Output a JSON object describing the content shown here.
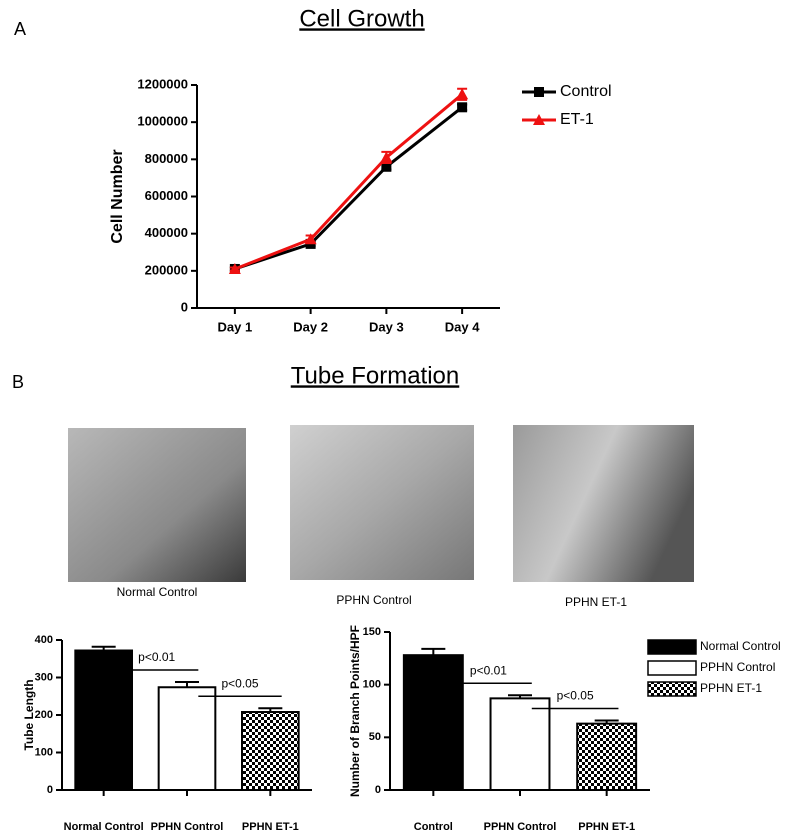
{
  "figure": {
    "panel_labels": [
      "A",
      "B"
    ],
    "section_title": "Tube Formation",
    "images": [
      {
        "caption": "Normal Control"
      },
      {
        "caption": "PPHN Control"
      },
      {
        "caption": "PPHN ET-1"
      }
    ]
  },
  "chart_data": [
    {
      "type": "line",
      "title": "Cell Growth",
      "y_label": "Cell Number",
      "categories": [
        "Day 1",
        "Day 2",
        "Day 3",
        "Day 4"
      ],
      "series": [
        {
          "name": "Control",
          "color": "#000000",
          "marker": "square",
          "values": [
            210000,
            345000,
            760000,
            1080000
          ],
          "errors": [
            8000,
            12000,
            15000,
            15000
          ]
        },
        {
          "name": "ET-1",
          "color": "#ee1111",
          "marker": "triangle",
          "values": [
            210000,
            370000,
            810000,
            1150000
          ],
          "errors": [
            8000,
            20000,
            30000,
            30000
          ]
        }
      ],
      "ylim": [
        0,
        1200000
      ],
      "yticks": [
        0,
        200000,
        400000,
        600000,
        800000,
        1000000,
        1200000
      ],
      "grid": false,
      "legend": "right"
    },
    {
      "type": "bar",
      "y_label": "Tube Length",
      "categories": [
        "Normal Control",
        "PPHN Control",
        "PPHN ET-1"
      ],
      "values": [
        372,
        274,
        208
      ],
      "errors": [
        10,
        14,
        10
      ],
      "fills": [
        "black",
        "white",
        "checker"
      ],
      "ylim": [
        0,
        400
      ],
      "yticks": [
        0,
        100,
        200,
        300,
        400
      ],
      "grid": false,
      "annotations": [
        "p<0.01",
        "p<0.05"
      ]
    },
    {
      "type": "bar",
      "y_label": "Number of Branch Points/HPF",
      "categories": [
        "Control",
        "PPHN Control",
        "PPHN ET-1"
      ],
      "values": [
        128,
        87,
        63
      ],
      "errors": [
        6,
        3,
        3
      ],
      "fills": [
        "black",
        "white",
        "checker"
      ],
      "ylim": [
        0,
        150
      ],
      "yticks": [
        0,
        50,
        100,
        150
      ],
      "grid": false,
      "annotations": [
        "p<0.01",
        "p<0.05"
      ],
      "legend": [
        "Normal Control",
        "PPHN Control",
        "PPHN ET-1"
      ]
    }
  ]
}
